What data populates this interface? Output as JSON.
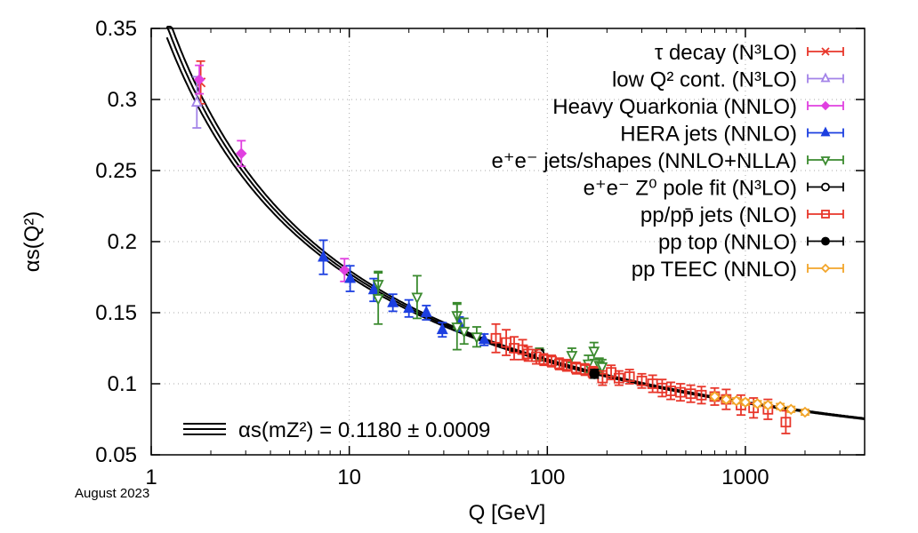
{
  "date_stamp": "August 2023",
  "chart_data": {
    "type": "scatter",
    "xlabel": "Q [GeV]",
    "ylabel": "αs(Q²)",
    "xscale": "log",
    "xlim": [
      1,
      4000
    ],
    "ylim": [
      0.05,
      0.35
    ],
    "xticks": [
      "1",
      "10",
      "100",
      "1000"
    ],
    "yticks": [
      "0.05",
      "0.1",
      "0.15",
      "0.2",
      "0.25",
      "0.3",
      "0.35"
    ],
    "grid": true,
    "legend_position": "top-right",
    "world_average_label": "αs(mZ²) = 0.1180 ± 0.0009",
    "world_average": {
      "alpha_mz": 0.118,
      "uncertainty": 0.0009,
      "mz": 91.1876
    },
    "series": [
      {
        "name": "τ decay (N³LO)",
        "color": "#e8362a",
        "marker": "cross",
        "points": [
          {
            "x": 1.777,
            "y": 0.312,
            "err": 0.015
          }
        ]
      },
      {
        "name": "low Q² cont. (N³LO)",
        "color": "#a383e8",
        "marker": "triangle-open",
        "points": [
          {
            "x": 1.7,
            "y": 0.298,
            "err": 0.018
          }
        ]
      },
      {
        "name": "Heavy Quarkonia (NNLO)",
        "color": "#e040e0",
        "marker": "diamond",
        "points": [
          {
            "x": 1.75,
            "y": 0.314,
            "err": 0.01
          },
          {
            "x": 2.85,
            "y": 0.262,
            "err": 0.009
          },
          {
            "x": 9.46,
            "y": 0.18,
            "err": 0.008
          }
        ]
      },
      {
        "name": "HERA jets (NNLO)",
        "color": "#1c3fe0",
        "marker": "triangle",
        "points": [
          {
            "x": 7.4,
            "y": 0.189,
            "err": 0.012
          },
          {
            "x": 10.1,
            "y": 0.174,
            "err": 0.009
          },
          {
            "x": 13.3,
            "y": 0.166,
            "err": 0.008
          },
          {
            "x": 16.6,
            "y": 0.157,
            "err": 0.006
          },
          {
            "x": 20.0,
            "y": 0.153,
            "err": 0.006
          },
          {
            "x": 24.5,
            "y": 0.15,
            "err": 0.005
          },
          {
            "x": 29.5,
            "y": 0.138,
            "err": 0.005
          },
          {
            "x": 36.0,
            "y": 0.142,
            "err": 0.005
          },
          {
            "x": 48.0,
            "y": 0.131,
            "err": 0.004
          }
        ]
      },
      {
        "name": "e⁺e⁻ jets/shapes (NNLO+NLLA)",
        "color": "#3a8a2e",
        "marker": "triangle-down-open",
        "points": [
          {
            "x": 14,
            "y": 0.17,
            "err": 0.009
          },
          {
            "x": 14,
            "y": 0.16,
            "err": 0.018
          },
          {
            "x": 22,
            "y": 0.161,
            "err": 0.015
          },
          {
            "x": 35,
            "y": 0.148,
            "err": 0.009
          },
          {
            "x": 35,
            "y": 0.14,
            "err": 0.016
          },
          {
            "x": 38,
            "y": 0.137,
            "err": 0.009
          },
          {
            "x": 44,
            "y": 0.133,
            "err": 0.007
          },
          {
            "x": 91.2,
            "y": 0.121,
            "err": 0.004
          },
          {
            "x": 133,
            "y": 0.12,
            "err": 0.005
          },
          {
            "x": 161,
            "y": 0.114,
            "err": 0.006
          },
          {
            "x": 172,
            "y": 0.123,
            "err": 0.006
          },
          {
            "x": 183,
            "y": 0.113,
            "err": 0.005
          },
          {
            "x": 189,
            "y": 0.112,
            "err": 0.005
          }
        ]
      },
      {
        "name": "e⁺e⁻ Z⁰ pole fit (N³LO)",
        "color": "#000000",
        "marker": "circle-open",
        "points": [
          {
            "x": 91.2,
            "y": 0.121,
            "err": 0.003
          }
        ]
      },
      {
        "name": "pp/pp̄ jets (NLO)",
        "color": "#e8362a",
        "marker": "square-open",
        "points": [
          {
            "x": 55,
            "y": 0.132,
            "err": 0.01
          },
          {
            "x": 62,
            "y": 0.129,
            "err": 0.009
          },
          {
            "x": 68,
            "y": 0.125,
            "err": 0.008
          },
          {
            "x": 75,
            "y": 0.124,
            "err": 0.007
          },
          {
            "x": 80,
            "y": 0.121,
            "err": 0.005
          },
          {
            "x": 88,
            "y": 0.119,
            "err": 0.005
          },
          {
            "x": 96,
            "y": 0.117,
            "err": 0.004
          },
          {
            "x": 105,
            "y": 0.116,
            "err": 0.004
          },
          {
            "x": 115,
            "y": 0.114,
            "err": 0.004
          },
          {
            "x": 125,
            "y": 0.113,
            "err": 0.004
          },
          {
            "x": 140,
            "y": 0.111,
            "err": 0.004
          },
          {
            "x": 155,
            "y": 0.11,
            "err": 0.004
          },
          {
            "x": 170,
            "y": 0.108,
            "err": 0.004
          },
          {
            "x": 190,
            "y": 0.104,
            "err": 0.005
          },
          {
            "x": 210,
            "y": 0.108,
            "err": 0.005
          },
          {
            "x": 230,
            "y": 0.104,
            "err": 0.005
          },
          {
            "x": 260,
            "y": 0.105,
            "err": 0.005
          },
          {
            "x": 300,
            "y": 0.102,
            "err": 0.005
          },
          {
            "x": 340,
            "y": 0.1,
            "err": 0.006
          },
          {
            "x": 380,
            "y": 0.097,
            "err": 0.006
          },
          {
            "x": 420,
            "y": 0.095,
            "err": 0.006
          },
          {
            "x": 470,
            "y": 0.094,
            "err": 0.006
          },
          {
            "x": 530,
            "y": 0.093,
            "err": 0.006
          },
          {
            "x": 600,
            "y": 0.092,
            "err": 0.006
          },
          {
            "x": 700,
            "y": 0.091,
            "err": 0.006
          },
          {
            "x": 800,
            "y": 0.089,
            "err": 0.007
          },
          {
            "x": 950,
            "y": 0.085,
            "err": 0.007
          },
          {
            "x": 1100,
            "y": 0.083,
            "err": 0.007
          },
          {
            "x": 1300,
            "y": 0.082,
            "err": 0.007
          },
          {
            "x": 1600,
            "y": 0.073,
            "err": 0.008
          }
        ]
      },
      {
        "name": "pp top (NNLO)",
        "color": "#000000",
        "marker": "circle",
        "points": [
          {
            "x": 173,
            "y": 0.107,
            "err": 0.003
          }
        ]
      },
      {
        "name": "pp TEEC (NNLO)",
        "color": "#f2a52a",
        "marker": "diamond-open",
        "points": [
          {
            "x": 700,
            "y": 0.091,
            "err": 0.002
          },
          {
            "x": 800,
            "y": 0.089,
            "err": 0.002
          },
          {
            "x": 900,
            "y": 0.088,
            "err": 0.002
          },
          {
            "x": 1000,
            "y": 0.087,
            "err": 0.002
          },
          {
            "x": 1150,
            "y": 0.086,
            "err": 0.002
          },
          {
            "x": 1300,
            "y": 0.085,
            "err": 0.002
          },
          {
            "x": 1500,
            "y": 0.084,
            "err": 0.002
          },
          {
            "x": 1700,
            "y": 0.082,
            "err": 0.002
          },
          {
            "x": 2000,
            "y": 0.08,
            "err": 0.002
          }
        ]
      }
    ]
  }
}
